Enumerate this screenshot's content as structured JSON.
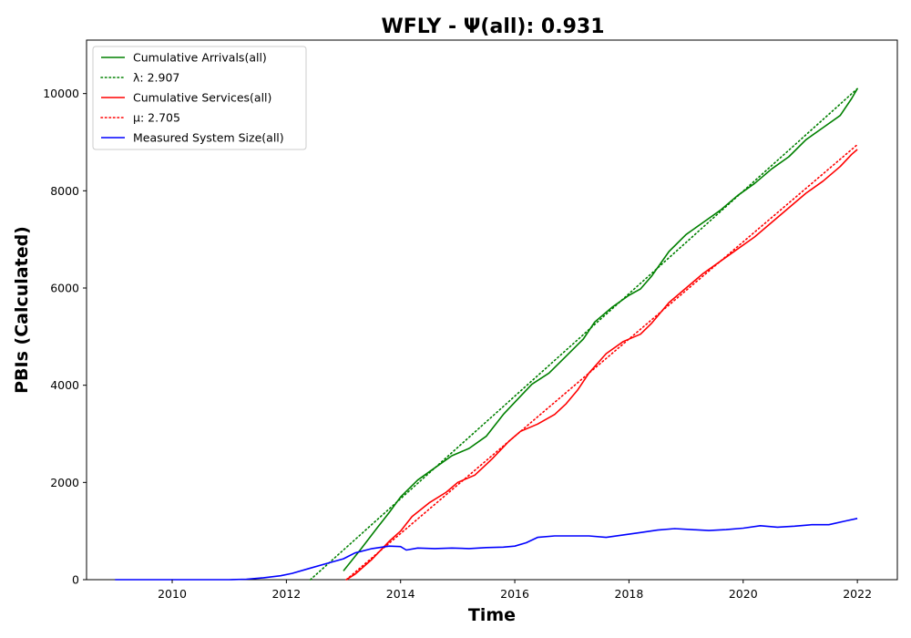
{
  "chart_data": {
    "type": "line",
    "title": "WFLY -  Ψ(all): 0.931",
    "xlabel": "Time",
    "ylabel": "PBIs (Calculated)",
    "xlim": [
      2008.5,
      2022.7
    ],
    "ylim": [
      0,
      11100
    ],
    "x_ticks": [
      2010,
      2012,
      2014,
      2016,
      2018,
      2020,
      2022
    ],
    "y_ticks": [
      0,
      2000,
      4000,
      6000,
      8000,
      10000
    ],
    "grid": false,
    "legend_position": "upper left",
    "series": [
      {
        "name": "Cumulative Arrivals(all)",
        "color": "#008000",
        "style": "solid",
        "points": [
          [
            2013.0,
            180
          ],
          [
            2013.3,
            620
          ],
          [
            2013.6,
            1080
          ],
          [
            2013.8,
            1380
          ],
          [
            2014.0,
            1700
          ],
          [
            2014.3,
            2050
          ],
          [
            2014.6,
            2300
          ],
          [
            2014.9,
            2550
          ],
          [
            2015.2,
            2700
          ],
          [
            2015.5,
            2950
          ],
          [
            2015.8,
            3400
          ],
          [
            2016.0,
            3650
          ],
          [
            2016.3,
            4020
          ],
          [
            2016.6,
            4250
          ],
          [
            2016.9,
            4600
          ],
          [
            2017.2,
            4950
          ],
          [
            2017.4,
            5300
          ],
          [
            2017.7,
            5600
          ],
          [
            2018.0,
            5850
          ],
          [
            2018.2,
            5980
          ],
          [
            2018.4,
            6250
          ],
          [
            2018.7,
            6750
          ],
          [
            2019.0,
            7100
          ],
          [
            2019.3,
            7350
          ],
          [
            2019.6,
            7600
          ],
          [
            2019.9,
            7900
          ],
          [
            2020.2,
            8150
          ],
          [
            2020.5,
            8450
          ],
          [
            2020.8,
            8700
          ],
          [
            2021.1,
            9050
          ],
          [
            2021.4,
            9300
          ],
          [
            2021.7,
            9550
          ],
          [
            2021.9,
            9900
          ],
          [
            2022.0,
            10100
          ]
        ]
      },
      {
        "name": "λ: 2.907",
        "color": "#008000",
        "style": "dotted",
        "points": [
          [
            2012.42,
            0
          ],
          [
            2022.0,
            10100
          ]
        ]
      },
      {
        "name": "Cumulative Services(all)",
        "color": "#ff0000",
        "style": "solid",
        "points": [
          [
            2013.05,
            0
          ],
          [
            2013.2,
            110
          ],
          [
            2013.5,
            420
          ],
          [
            2013.8,
            790
          ],
          [
            2014.0,
            1000
          ],
          [
            2014.2,
            1300
          ],
          [
            2014.5,
            1580
          ],
          [
            2014.8,
            1800
          ],
          [
            2015.0,
            2000
          ],
          [
            2015.3,
            2150
          ],
          [
            2015.6,
            2480
          ],
          [
            2015.9,
            2850
          ],
          [
            2016.1,
            3050
          ],
          [
            2016.4,
            3200
          ],
          [
            2016.7,
            3400
          ],
          [
            2016.9,
            3620
          ],
          [
            2017.1,
            3900
          ],
          [
            2017.3,
            4250
          ],
          [
            2017.6,
            4650
          ],
          [
            2017.9,
            4900
          ],
          [
            2018.2,
            5050
          ],
          [
            2018.4,
            5280
          ],
          [
            2018.7,
            5700
          ],
          [
            2019.0,
            6000
          ],
          [
            2019.3,
            6300
          ],
          [
            2019.6,
            6550
          ],
          [
            2019.9,
            6800
          ],
          [
            2020.2,
            7050
          ],
          [
            2020.5,
            7350
          ],
          [
            2020.8,
            7650
          ],
          [
            2021.1,
            7950
          ],
          [
            2021.4,
            8200
          ],
          [
            2021.7,
            8500
          ],
          [
            2021.9,
            8750
          ],
          [
            2022.0,
            8850
          ]
        ]
      },
      {
        "name": "μ: 2.705",
        "color": "#ff0000",
        "style": "dotted",
        "points": [
          [
            2013.05,
            0
          ],
          [
            2022.0,
            8950
          ]
        ]
      },
      {
        "name": "Measured System Size(all)",
        "color": "#0000ff",
        "style": "solid",
        "points": [
          [
            2009.0,
            0
          ],
          [
            2011.0,
            0
          ],
          [
            2011.3,
            10
          ],
          [
            2011.6,
            40
          ],
          [
            2011.9,
            80
          ],
          [
            2012.1,
            130
          ],
          [
            2012.4,
            230
          ],
          [
            2012.7,
            330
          ],
          [
            2013.0,
            430
          ],
          [
            2013.2,
            550
          ],
          [
            2013.5,
            640
          ],
          [
            2013.8,
            690
          ],
          [
            2014.0,
            680
          ],
          [
            2014.1,
            610
          ],
          [
            2014.3,
            650
          ],
          [
            2014.6,
            640
          ],
          [
            2014.9,
            650
          ],
          [
            2015.2,
            640
          ],
          [
            2015.5,
            660
          ],
          [
            2015.8,
            670
          ],
          [
            2016.0,
            690
          ],
          [
            2016.2,
            760
          ],
          [
            2016.4,
            870
          ],
          [
            2016.7,
            900
          ],
          [
            2017.0,
            900
          ],
          [
            2017.3,
            900
          ],
          [
            2017.6,
            870
          ],
          [
            2017.9,
            920
          ],
          [
            2018.2,
            970
          ],
          [
            2018.5,
            1020
          ],
          [
            2018.8,
            1050
          ],
          [
            2019.1,
            1030
          ],
          [
            2019.4,
            1010
          ],
          [
            2019.7,
            1030
          ],
          [
            2020.0,
            1060
          ],
          [
            2020.3,
            1110
          ],
          [
            2020.6,
            1080
          ],
          [
            2020.9,
            1100
          ],
          [
            2021.2,
            1130
          ],
          [
            2021.5,
            1130
          ],
          [
            2021.8,
            1210
          ],
          [
            2022.0,
            1260
          ]
        ]
      }
    ]
  }
}
